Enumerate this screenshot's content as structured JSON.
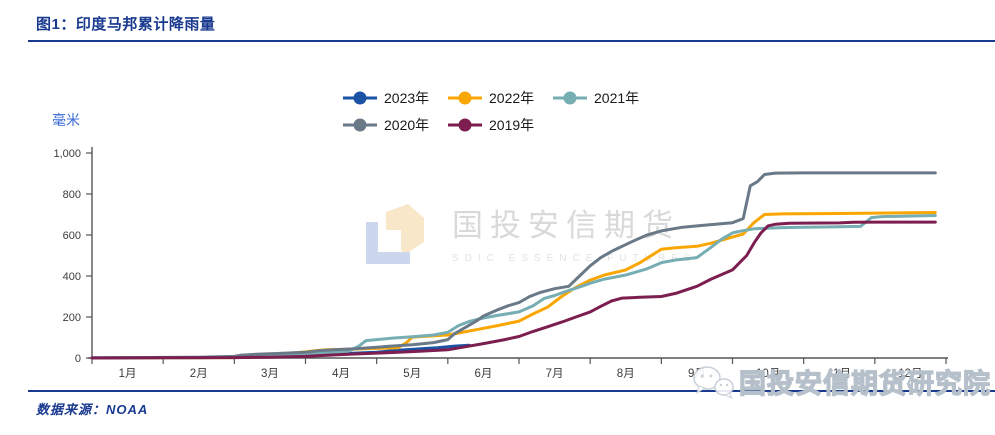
{
  "header": {
    "title": "图1：印度马邦累计降雨量"
  },
  "colors": {
    "accent_navy": "#1a3a8f",
    "unit_blue": "#3a6ad5",
    "axis": "#555555",
    "tick_text": "#3c3c3c"
  },
  "chart_data": {
    "type": "line",
    "title": "印度马邦累计降雨量",
    "xlabel": "",
    "ylabel": "毫米",
    "x_unit": "month",
    "xlim": [
      1,
      13
    ],
    "ylim": [
      0,
      1000
    ],
    "grid": false,
    "legend_position": "top",
    "y_tick_values": [
      0,
      200,
      400,
      600,
      800,
      1000
    ],
    "y_tick_labels": [
      "0",
      "200",
      "400",
      "600",
      "800",
      "1,000"
    ],
    "x_tick_labels": [
      "1月",
      "2月",
      "3月",
      "4月",
      "5月",
      "6月",
      "7月",
      "8月",
      "9月",
      "10月",
      "11月",
      "12月"
    ],
    "series": [
      {
        "name": "2023年",
        "color": "#1a52a6",
        "points": [
          [
            1,
            1
          ],
          [
            1.5,
            1
          ],
          [
            2,
            2
          ],
          [
            2.5,
            2
          ],
          [
            3,
            3
          ],
          [
            3.2,
            6
          ],
          [
            3.5,
            8
          ],
          [
            3.8,
            10
          ],
          [
            4,
            12
          ],
          [
            4.2,
            16
          ],
          [
            4.5,
            20
          ],
          [
            4.7,
            24
          ],
          [
            5,
            28
          ],
          [
            5.15,
            33
          ],
          [
            5.3,
            38
          ],
          [
            5.5,
            42
          ],
          [
            5.7,
            47
          ],
          [
            5.85,
            50
          ],
          [
            6,
            55
          ],
          [
            6.1,
            58
          ],
          [
            6.3,
            62
          ]
        ]
      },
      {
        "name": "2022年",
        "color": "#f9a602",
        "points": [
          [
            1,
            0
          ],
          [
            2,
            1
          ],
          [
            3,
            2
          ],
          [
            3.4,
            5
          ],
          [
            3.6,
            12
          ],
          [
            3.75,
            22
          ],
          [
            4,
            30
          ],
          [
            4.15,
            36
          ],
          [
            4.3,
            40
          ],
          [
            4.6,
            43
          ],
          [
            5,
            47
          ],
          [
            5.3,
            50
          ],
          [
            5.42,
            75
          ],
          [
            5.5,
            102
          ],
          [
            5.7,
            106
          ],
          [
            6,
            112
          ],
          [
            6.2,
            125
          ],
          [
            6.4,
            138
          ],
          [
            6.7,
            158
          ],
          [
            7,
            180
          ],
          [
            7.2,
            215
          ],
          [
            7.4,
            248
          ],
          [
            7.6,
            300
          ],
          [
            7.8,
            345
          ],
          [
            8,
            380
          ],
          [
            8.2,
            405
          ],
          [
            8.5,
            430
          ],
          [
            8.7,
            465
          ],
          [
            9,
            530
          ],
          [
            9.2,
            538
          ],
          [
            9.5,
            545
          ],
          [
            9.7,
            560
          ],
          [
            10,
            590
          ],
          [
            10.15,
            605
          ],
          [
            10.3,
            660
          ],
          [
            10.45,
            700
          ],
          [
            10.7,
            703
          ],
          [
            11.5,
            705
          ],
          [
            12.3,
            708
          ],
          [
            12.85,
            710
          ]
        ]
      },
      {
        "name": "2021年",
        "color": "#76aeb3",
        "points": [
          [
            1,
            0
          ],
          [
            2,
            2
          ],
          [
            3,
            4
          ],
          [
            3.3,
            7
          ],
          [
            3.6,
            10
          ],
          [
            4,
            18
          ],
          [
            4.3,
            25
          ],
          [
            4.6,
            32
          ],
          [
            4.75,
            58
          ],
          [
            4.85,
            85
          ],
          [
            5,
            90
          ],
          [
            5.2,
            96
          ],
          [
            5.5,
            104
          ],
          [
            5.8,
            112
          ],
          [
            6,
            125
          ],
          [
            6.15,
            158
          ],
          [
            6.3,
            178
          ],
          [
            6.5,
            195
          ],
          [
            6.7,
            208
          ],
          [
            7,
            225
          ],
          [
            7.2,
            255
          ],
          [
            7.35,
            290
          ],
          [
            7.5,
            305
          ],
          [
            7.7,
            330
          ],
          [
            7.9,
            352
          ],
          [
            8,
            365
          ],
          [
            8.2,
            385
          ],
          [
            8.5,
            405
          ],
          [
            8.8,
            435
          ],
          [
            9,
            465
          ],
          [
            9.2,
            478
          ],
          [
            9.5,
            490
          ],
          [
            9.7,
            540
          ],
          [
            9.85,
            580
          ],
          [
            10,
            610
          ],
          [
            10.1,
            618
          ],
          [
            10.3,
            630
          ],
          [
            10.7,
            636
          ],
          [
            11,
            638
          ],
          [
            11.5,
            640
          ],
          [
            11.8,
            642
          ],
          [
            11.95,
            685
          ],
          [
            12.1,
            690
          ],
          [
            12.85,
            695
          ]
        ]
      },
      {
        "name": "2020年",
        "color": "#6a7987",
        "points": [
          [
            1,
            0
          ],
          [
            2,
            3
          ],
          [
            2.5,
            4
          ],
          [
            3,
            8
          ],
          [
            3.1,
            14
          ],
          [
            3.3,
            18
          ],
          [
            3.6,
            22
          ],
          [
            4,
            28
          ],
          [
            4.2,
            36
          ],
          [
            4.4,
            40
          ],
          [
            4.7,
            45
          ],
          [
            5,
            52
          ],
          [
            5.2,
            58
          ],
          [
            5.5,
            65
          ],
          [
            5.8,
            75
          ],
          [
            6,
            90
          ],
          [
            6.1,
            120
          ],
          [
            6.25,
            150
          ],
          [
            6.4,
            180
          ],
          [
            6.5,
            205
          ],
          [
            6.7,
            235
          ],
          [
            6.85,
            255
          ],
          [
            7,
            270
          ],
          [
            7.15,
            300
          ],
          [
            7.3,
            320
          ],
          [
            7.5,
            338
          ],
          [
            7.7,
            350
          ],
          [
            7.85,
            400
          ],
          [
            8,
            450
          ],
          [
            8.15,
            490
          ],
          [
            8.3,
            520
          ],
          [
            8.6,
            570
          ],
          [
            8.8,
            600
          ],
          [
            9,
            620
          ],
          [
            9.3,
            638
          ],
          [
            9.6,
            648
          ],
          [
            10,
            660
          ],
          [
            10.15,
            680
          ],
          [
            10.25,
            840
          ],
          [
            10.35,
            860
          ],
          [
            10.45,
            895
          ],
          [
            10.6,
            902
          ],
          [
            11,
            903
          ],
          [
            12.85,
            903
          ]
        ]
      },
      {
        "name": "2019年",
        "color": "#7c1e4f",
        "points": [
          [
            1,
            0
          ],
          [
            2,
            1
          ],
          [
            3,
            2
          ],
          [
            3.5,
            4
          ],
          [
            4,
            8
          ],
          [
            4.3,
            13
          ],
          [
            4.6,
            18
          ],
          [
            5,
            24
          ],
          [
            5.3,
            28
          ],
          [
            5.6,
            33
          ],
          [
            6,
            40
          ],
          [
            6.2,
            52
          ],
          [
            6.5,
            70
          ],
          [
            6.8,
            90
          ],
          [
            7,
            105
          ],
          [
            7.2,
            130
          ],
          [
            7.4,
            152
          ],
          [
            7.6,
            175
          ],
          [
            7.8,
            200
          ],
          [
            8,
            225
          ],
          [
            8.15,
            252
          ],
          [
            8.3,
            278
          ],
          [
            8.45,
            292
          ],
          [
            8.7,
            296
          ],
          [
            9,
            300
          ],
          [
            9.2,
            315
          ],
          [
            9.5,
            350
          ],
          [
            9.7,
            385
          ],
          [
            10,
            430
          ],
          [
            10.1,
            465
          ],
          [
            10.2,
            500
          ],
          [
            10.3,
            560
          ],
          [
            10.4,
            610
          ],
          [
            10.5,
            645
          ],
          [
            10.6,
            652
          ],
          [
            10.8,
            657
          ],
          [
            11,
            658
          ],
          [
            11.5,
            659
          ],
          [
            11.7,
            662
          ],
          [
            12,
            663
          ],
          [
            12.85,
            663
          ]
        ]
      }
    ]
  },
  "watermark": {
    "brand_cn": "国投安信期货",
    "brand_en": "SDIC ESSENCE FUTURES"
  },
  "footer": {
    "source": "数据来源：NOAA",
    "watermark": "国投安信期货研究院"
  }
}
